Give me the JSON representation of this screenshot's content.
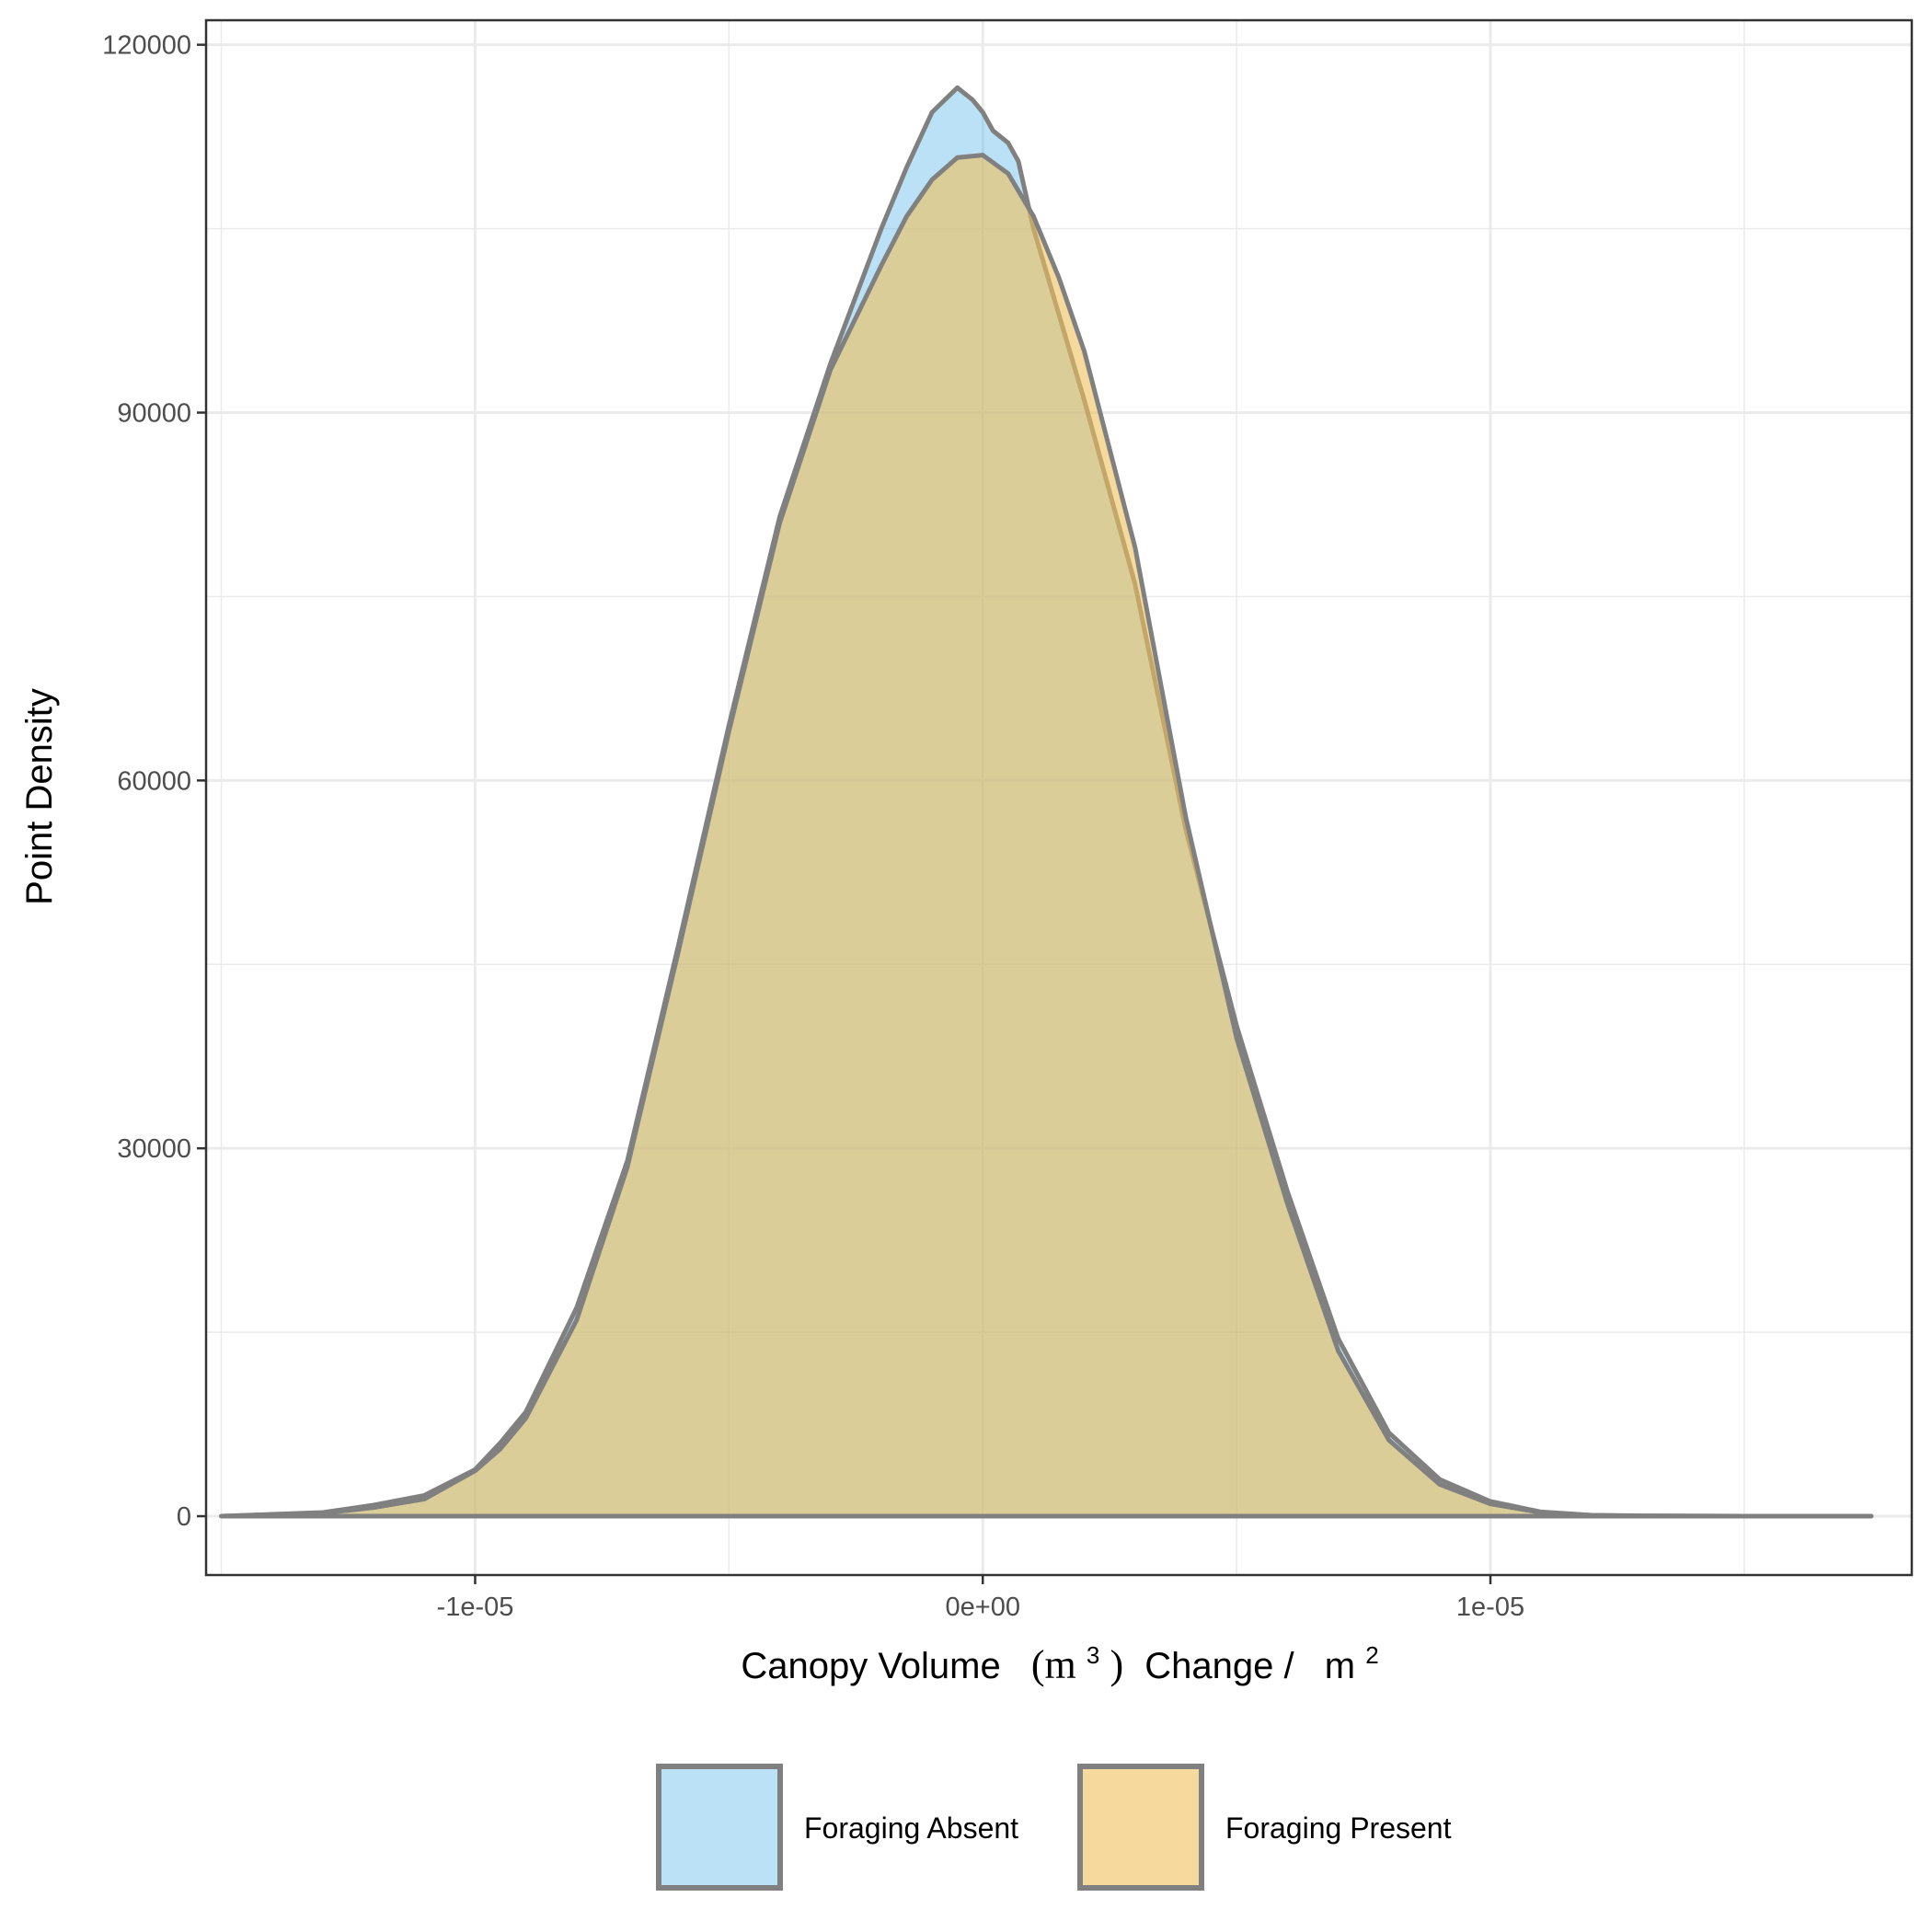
{
  "chart_data": {
    "type": "area",
    "x_axis": {
      "label_main": "Canopy Volume",
      "label_unit_open": "(m",
      "label_unit_sup": "3",
      "label_unit_close": ")",
      "label_rest": "Change /",
      "label_m": "m",
      "label_m_sup": "2",
      "range": [
        -1.53e-05,
        1.83e-05
      ],
      "ticks": [
        -1e-05,
        0,
        1e-05
      ],
      "tick_labels": [
        "-1e-05",
        "0e+00",
        "1e-05"
      ],
      "minor_gridlines": [
        -1.5e-05,
        -5e-06,
        5e-06,
        1.5e-05
      ]
    },
    "y_axis": {
      "label": "Point Density",
      "range": [
        -4800,
        122000
      ],
      "ticks": [
        0,
        30000,
        60000,
        90000,
        120000
      ],
      "tick_labels": [
        "0",
        "30000",
        "60000",
        "90000",
        "120000"
      ],
      "minor_gridlines": [
        15000,
        45000,
        75000,
        105000
      ]
    },
    "grid": true,
    "legend_position": "bottom",
    "colors": {
      "outline": "#808080",
      "frame": "#333333",
      "grid": "#ebebeb"
    },
    "series": [
      {
        "name": "Foraging Absent",
        "fill": "#56B4E9",
        "x": [
          -1.5e-05,
          -1.3e-05,
          -1.2e-05,
          -1.1e-05,
          -1e-05,
          -9.5e-06,
          -9e-06,
          -8e-06,
          -7e-06,
          -6e-06,
          -5e-06,
          -4e-06,
          -3e-06,
          -2e-06,
          -1.5e-06,
          -1e-06,
          -5e-07,
          -2e-07,
          0,
          2e-07,
          5e-07,
          7e-07,
          1e-06,
          1.5e-06,
          2e-06,
          3e-06,
          4e-06,
          5e-06,
          6e-06,
          7e-06,
          8e-06,
          9e-06,
          1e-05,
          1.1e-05,
          1.2e-05,
          1.3e-05,
          1.5e-05,
          1.75e-05
        ],
        "y": [
          0,
          300,
          900,
          1700,
          3800,
          6000,
          8500,
          17000,
          29000,
          46500,
          64500,
          81500,
          94000,
          105000,
          110000,
          114500,
          116500,
          115500,
          114500,
          113000,
          112000,
          110500,
          105000,
          98000,
          91000,
          76000,
          56000,
          40000,
          26500,
          14500,
          6800,
          3000,
          1200,
          350,
          80,
          30,
          5,
          0
        ]
      },
      {
        "name": "Foraging Present",
        "fill": "#F0C05A",
        "x": [
          -1.5e-05,
          -1.3e-05,
          -1.2e-05,
          -1.1e-05,
          -1e-05,
          -9.5e-06,
          -9e-06,
          -8e-06,
          -7e-06,
          -6e-06,
          -5e-06,
          -4e-06,
          -3e-06,
          -2e-06,
          -1.5e-06,
          -1e-06,
          -5e-07,
          0,
          5e-07,
          1e-06,
          1.5e-06,
          2e-06,
          3e-06,
          4e-06,
          5e-06,
          6e-06,
          7e-06,
          8e-06,
          9e-06,
          1e-05,
          1.1e-05,
          1.2e-05,
          1.3e-05,
          1.5e-05,
          1.75e-05
        ],
        "y": [
          0,
          250,
          700,
          1400,
          3700,
          5500,
          8000,
          16000,
          28500,
          46000,
          64000,
          81000,
          93500,
          102000,
          106000,
          109000,
          110800,
          111000,
          109500,
          106000,
          101000,
          95000,
          79000,
          57000,
          39000,
          25500,
          13500,
          6200,
          2600,
          1000,
          300,
          70,
          20,
          5,
          0
        ]
      }
    ]
  }
}
